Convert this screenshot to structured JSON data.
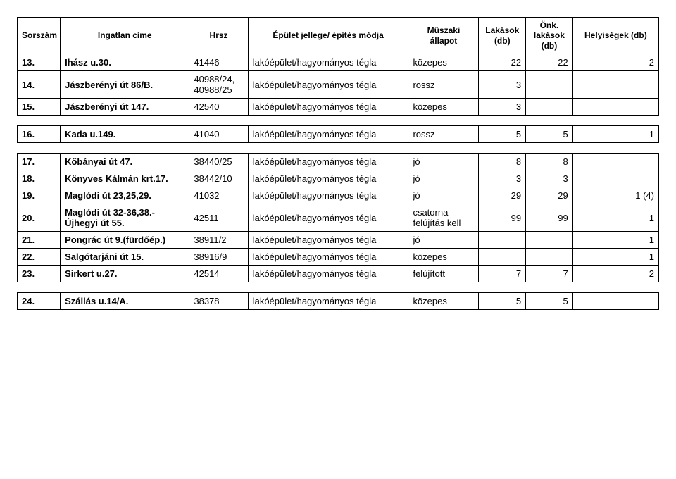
{
  "headers": {
    "sorszam": "Sorszám",
    "cime": "Ingatlan címe",
    "hrsz": "Hrsz",
    "epulet": "Épület jellege/ építés módja",
    "muszaki": "Műszaki állapot",
    "lakasok": "Lakások (db)",
    "onk": "Önk. lakások (db)",
    "hely": "Helyiségek (db)"
  },
  "rows": [
    {
      "n": "13.",
      "cime": "Ihász u.30.",
      "hrsz": "41446",
      "epulet": "lakóépület/hagyományos tégla",
      "muszaki": "közepes",
      "lak": "22",
      "onk": "22",
      "hely": "2"
    },
    {
      "n": "14.",
      "cime": "Jászberényi út 86/B.",
      "hrsz": "40988/24, 40988/25",
      "epulet": "lakóépület/hagyományos tégla",
      "muszaki": "rossz",
      "lak": "3",
      "onk": "",
      "hely": ""
    },
    {
      "n": "15.",
      "cime": "Jászberényi út 147.",
      "hrsz": "42540",
      "epulet": "lakóépület/hagyományos tégla",
      "muszaki": "közepes",
      "lak": "3",
      "onk": "",
      "hely": ""
    },
    {
      "n": "16.",
      "cime": "Kada u.149.",
      "hrsz": "41040",
      "epulet": "lakóépület/hagyományos tégla",
      "muszaki": "rossz",
      "lak": "5",
      "onk": "5",
      "hely": "1"
    },
    {
      "n": "17.",
      "cime": "Kőbányai út 47.",
      "hrsz": "38440/25",
      "epulet": "lakóépület/hagyományos tégla",
      "muszaki": "jó",
      "lak": "8",
      "onk": "8",
      "hely": ""
    },
    {
      "n": "18.",
      "cime": "Könyves Kálmán krt.17.",
      "hrsz": "38442/10",
      "epulet": "lakóépület/hagyományos tégla",
      "muszaki": "jó",
      "lak": "3",
      "onk": "3",
      "hely": ""
    },
    {
      "n": "19.",
      "cime": "Maglódi út 23,25,29.",
      "hrsz": "41032",
      "epulet": "lakóépület/hagyományos tégla",
      "muszaki": "jó",
      "lak": "29",
      "onk": "29",
      "hely": "1 (4)"
    },
    {
      "n": "20.",
      "cime": "Maglódi út 32-36,38.- Újhegyi út 55.",
      "hrsz": "42511",
      "epulet": "lakóépület/hagyományos tégla",
      "muszaki": "csatorna felújítás kell",
      "lak": "99",
      "onk": "99",
      "hely": "1"
    },
    {
      "n": "21.",
      "cime": "Pongrác út 9.(fürdőép.)",
      "hrsz": "38911/2",
      "epulet": "lakóépület/hagyományos tégla",
      "muszaki": "jó",
      "lak": "",
      "onk": "",
      "hely": "1"
    },
    {
      "n": "22.",
      "cime": "Salgótarjáni út 15.",
      "hrsz": "38916/9",
      "epulet": "lakóépület/hagyományos tégla",
      "muszaki": "közepes",
      "lak": "",
      "onk": "",
      "hely": "1"
    },
    {
      "n": "23.",
      "cime": "Sirkert u.27.",
      "hrsz": "42514",
      "epulet": "lakóépület/hagyományos tégla",
      "muszaki": "felújított",
      "lak": "7",
      "onk": "7",
      "hely": "2"
    },
    {
      "n": "24.",
      "cime": "Szállás u.14/A.",
      "hrsz": "38378",
      "epulet": "lakóépület/hagyományos tégla",
      "muszaki": "közepes",
      "lak": "5",
      "onk": "5",
      "hely": ""
    }
  ]
}
